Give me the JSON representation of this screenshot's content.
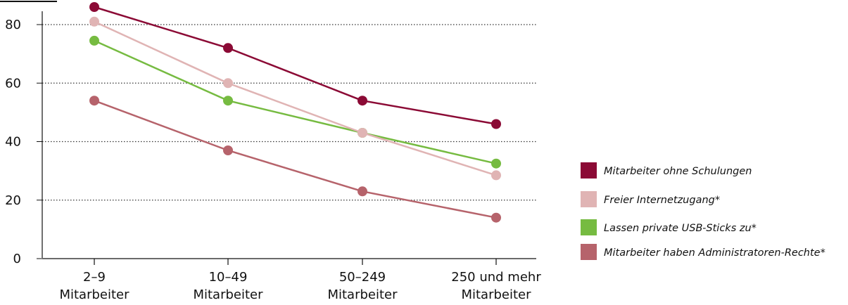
{
  "chart_data": {
    "type": "line",
    "categories": [
      [
        "2–9",
        "Mitarbeiter"
      ],
      [
        "10–49",
        "Mitarbeiter"
      ],
      [
        "50–249",
        "Mitarbeiter"
      ],
      [
        "250 und mehr",
        "Mitarbeiter"
      ]
    ],
    "yticks": [
      "0",
      "20",
      "40",
      "60",
      "80"
    ],
    "ylim": [
      0,
      80
    ],
    "grid": "dotted horizontal",
    "legend_position": "right",
    "series": [
      {
        "name": "Mitarbeiter ohne Schulungen",
        "color": "#8b0a35",
        "values": [
          86,
          72,
          54,
          46
        ]
      },
      {
        "name": "Freier Internetzugang*",
        "color": "#e0b4b4",
        "values": [
          81,
          60,
          43,
          28.5
        ]
      },
      {
        "name": "Lassen private USB-Sticks zu*",
        "color": "#76bb41",
        "values": [
          74.5,
          54,
          43,
          32.5
        ]
      },
      {
        "name": "Mitarbeiter haben Administratoren-Rechte*",
        "color": "#b6636b",
        "values": [
          54,
          37,
          23,
          14
        ]
      }
    ]
  }
}
